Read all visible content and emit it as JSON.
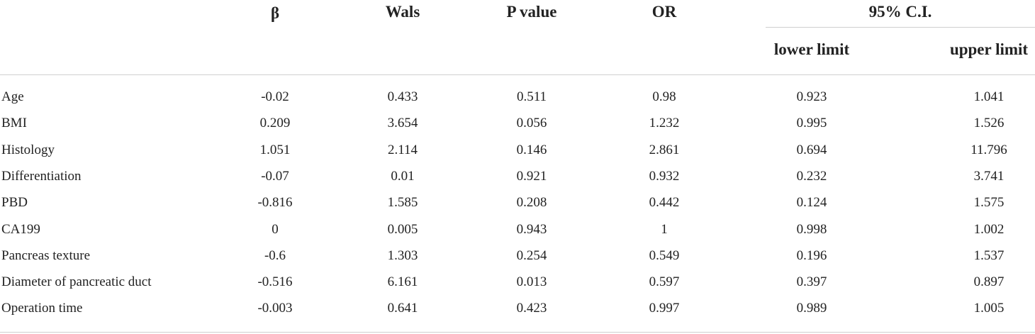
{
  "header": {
    "col_beta": "β",
    "col_wals": "Wals",
    "col_p": "P value",
    "col_or": "OR",
    "col_ci": "95% C.I.",
    "col_lower": "lower limit",
    "col_upper": "upper limit"
  },
  "rows": [
    {
      "label": "Age",
      "beta": "-0.02",
      "wals": "0.433",
      "p": "0.511",
      "or": "0.98",
      "lower": "0.923",
      "upper": "1.041"
    },
    {
      "label": "BMI",
      "beta": "0.209",
      "wals": "3.654",
      "p": "0.056",
      "or": "1.232",
      "lower": "0.995",
      "upper": "1.526"
    },
    {
      "label": "Histology",
      "beta": "1.051",
      "wals": "2.114",
      "p": "0.146",
      "or": "2.861",
      "lower": "0.694",
      "upper": "11.796"
    },
    {
      "label": "Differentiation",
      "beta": "-0.07",
      "wals": "0.01",
      "p": "0.921",
      "or": "0.932",
      "lower": "0.232",
      "upper": "3.741"
    },
    {
      "label": "PBD",
      "beta": "-0.816",
      "wals": "1.585",
      "p": "0.208",
      "or": "0.442",
      "lower": "0.124",
      "upper": "1.575"
    },
    {
      "label": "CA199",
      "beta": "0",
      "wals": "0.005",
      "p": "0.943",
      "or": "1",
      "lower": "0.998",
      "upper": "1.002"
    },
    {
      "label": "Pancreas texture",
      "beta": "-0.6",
      "wals": "1.303",
      "p": "0.254",
      "or": "0.549",
      "lower": "0.196",
      "upper": "1.537"
    },
    {
      "label": "Diameter of pancreatic duct",
      "beta": "-0.516",
      "wals": "6.161",
      "p": "0.013",
      "or": "0.597",
      "lower": "0.397",
      "upper": "0.897"
    },
    {
      "label": "Operation time",
      "beta": "-0.003",
      "wals": "0.641",
      "p": "0.423",
      "or": "0.997",
      "lower": "0.989",
      "upper": "1.005"
    }
  ]
}
